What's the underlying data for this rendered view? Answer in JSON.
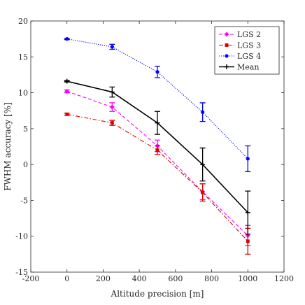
{
  "chart_data": {
    "type": "line",
    "xlabel": "Altitude precision [m]",
    "ylabel": "FWHM accuracy [%]",
    "xlim": [
      -200,
      1200
    ],
    "ylim": [
      -15,
      20
    ],
    "xticks": [
      -200,
      0,
      200,
      400,
      600,
      800,
      1000,
      1200
    ],
    "yticks": [
      -15,
      -10,
      -5,
      0,
      5,
      10,
      15,
      20
    ],
    "xtick_labels": [
      "-200",
      "0",
      "200",
      "400",
      "600",
      "800",
      "1000",
      "1200"
    ],
    "ytick_labels": [
      "-15",
      "-10",
      "-5",
      "0",
      "5",
      "10",
      "15",
      "20"
    ],
    "grid": false,
    "legend_position": "top-right",
    "x": [
      0,
      250,
      500,
      750,
      1000
    ],
    "series": [
      {
        "name": "LGS 2",
        "color": "#ff00ff",
        "line_style": "dashed",
        "marker": "diamond",
        "values": [
          10.2,
          8.0,
          2.6,
          -3.8,
          -9.9
        ],
        "errors": [
          0.2,
          0.6,
          0.8,
          1.1,
          1.4
        ]
      },
      {
        "name": "LGS 3",
        "color": "#dd0000",
        "line_style": "dashdot",
        "marker": "square",
        "values": [
          7.0,
          5.8,
          2.0,
          -3.9,
          -10.7
        ],
        "errors": [
          0.15,
          0.35,
          0.6,
          1.2,
          1.8
        ]
      },
      {
        "name": "LGS 4",
        "color": "#0000ff",
        "line_style": "dotted",
        "marker": "circle",
        "values": [
          17.5,
          16.4,
          12.9,
          7.3,
          0.8
        ],
        "errors": [
          0.1,
          0.35,
          0.8,
          1.3,
          1.8
        ]
      },
      {
        "name": "Mean",
        "color": "#000000",
        "line_style": "solid",
        "marker": "plus",
        "values": [
          11.6,
          10.1,
          5.8,
          0.0,
          -6.7
        ],
        "errors": [
          0.1,
          0.7,
          1.6,
          2.3,
          3.0
        ]
      }
    ]
  }
}
